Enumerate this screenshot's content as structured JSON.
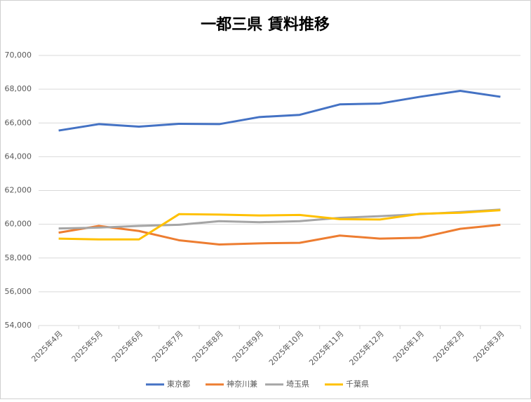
{
  "chart_data": {
    "type": "line",
    "title": "一都三県 賃料推移",
    "categories": [
      "2025年4月",
      "2025年5月",
      "2025年6月",
      "2025年7月",
      "2025年8月",
      "2025年9月",
      "2025年10月",
      "2025年11月",
      "2025年12月",
      "2026年1月",
      "2026年2月",
      "2026年3月"
    ],
    "series": [
      {
        "name": "東京都",
        "color": "#4472c4",
        "values": [
          65550,
          65930,
          65780,
          65950,
          65930,
          66350,
          66480,
          67100,
          67150,
          67550,
          67900,
          67550
        ]
      },
      {
        "name": "神奈川兼",
        "color": "#ed7d31",
        "values": [
          59500,
          59900,
          59600,
          59050,
          58800,
          58870,
          58900,
          59330,
          59150,
          59200,
          59730,
          59970
        ]
      },
      {
        "name": "埼玉県",
        "color": "#a5a5a5",
        "values": [
          59750,
          59800,
          59900,
          59970,
          60180,
          60120,
          60180,
          60380,
          60480,
          60600,
          60720,
          60870
        ]
      },
      {
        "name": "千葉県",
        "color": "#ffc000",
        "values": [
          59150,
          59100,
          59100,
          60600,
          60570,
          60520,
          60550,
          60300,
          60280,
          60620,
          60680,
          60830
        ]
      }
    ],
    "ylim": [
      54000,
      70000
    ],
    "yticks": [
      {
        "value": 54000,
        "label": "54,000"
      },
      {
        "value": 56000,
        "label": "56,000"
      },
      {
        "value": 58000,
        "label": "58,000"
      },
      {
        "value": 60000,
        "label": "60,000"
      },
      {
        "value": 62000,
        "label": "62,000"
      },
      {
        "value": 64000,
        "label": "64,000"
      },
      {
        "value": 66000,
        "label": "66,000"
      },
      {
        "value": 68000,
        "label": "68,000"
      },
      {
        "value": 70000,
        "label": "70,000"
      }
    ],
    "grid": true,
    "legend": "bottom"
  }
}
